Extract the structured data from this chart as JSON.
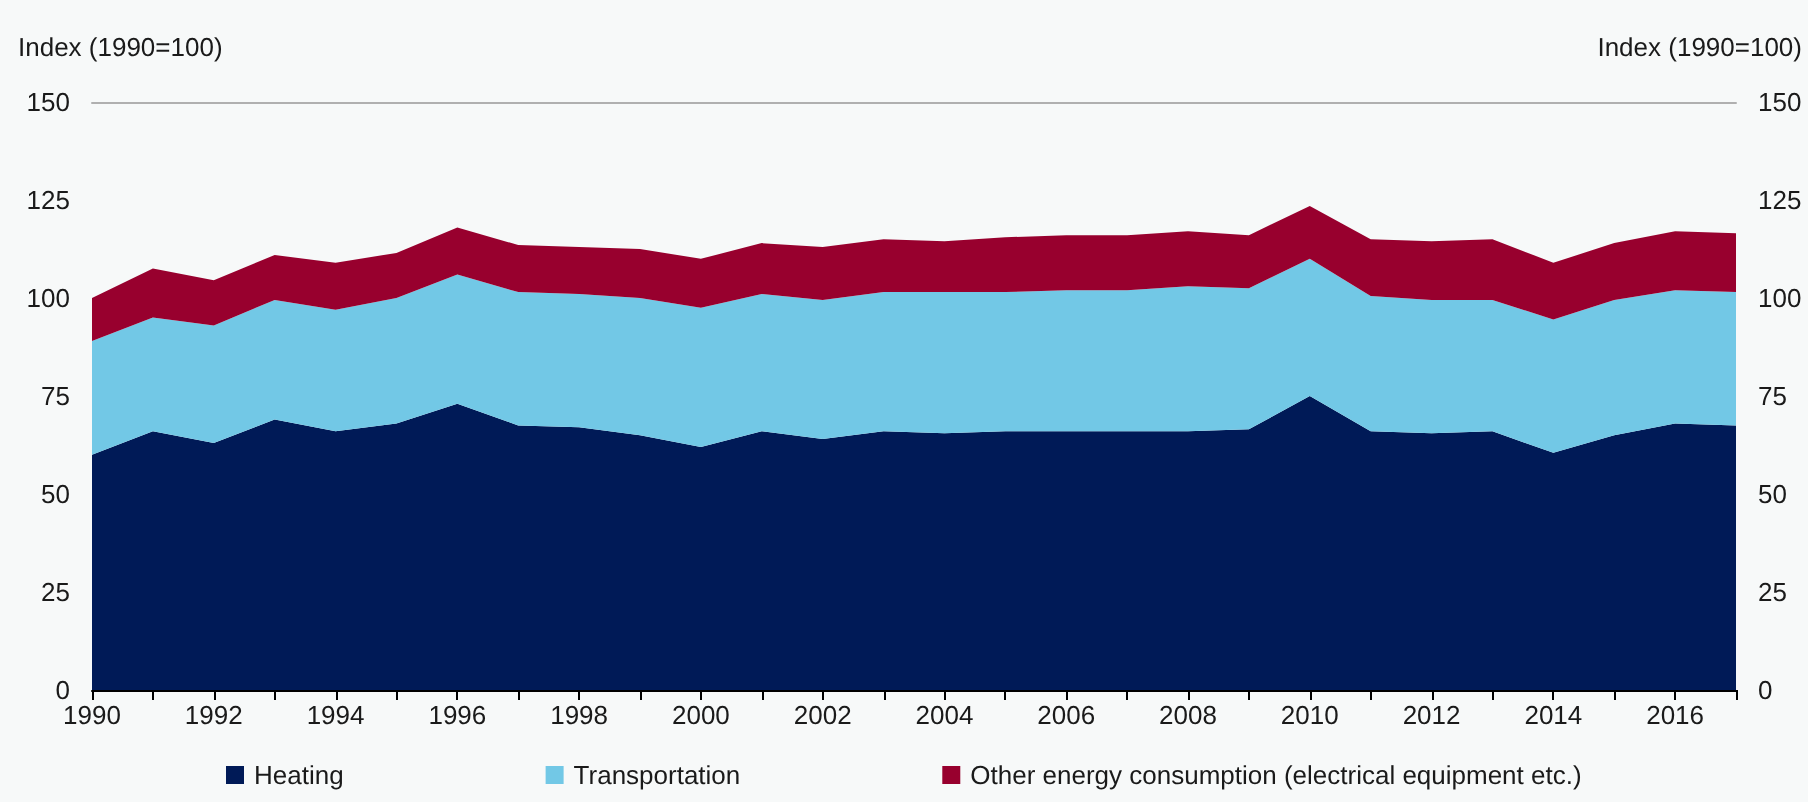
{
  "chart_data": {
    "type": "area",
    "stacked": true,
    "ylabel": "Index (1990=100)",
    "y2label": "Index (1990=100)",
    "x": [
      1990,
      1991,
      1992,
      1993,
      1994,
      1995,
      1996,
      1997,
      1998,
      1999,
      2000,
      2001,
      2002,
      2003,
      2004,
      2005,
      2006,
      2007,
      2008,
      2009,
      2010,
      2011,
      2012,
      2013,
      2014,
      2015,
      2016,
      2017
    ],
    "series": [
      {
        "name": "Heating",
        "color": "#001a57",
        "values": [
          60,
          66,
          63,
          69,
          66,
          68,
          73,
          67.5,
          67,
          65,
          62,
          66,
          64,
          66,
          65.5,
          66,
          66,
          66,
          66,
          66.5,
          75,
          66,
          65.5,
          66,
          60.5,
          65,
          68,
          67.5
        ]
      },
      {
        "name": "Transportation",
        "color": "#72c8e6",
        "values": [
          29,
          29,
          30,
          30.5,
          31,
          32,
          33,
          34,
          34,
          35,
          35.5,
          35,
          35.5,
          35.5,
          36,
          35.5,
          36,
          36,
          37,
          36,
          35,
          34.5,
          34,
          33.5,
          34,
          34.5,
          34,
          34
        ]
      },
      {
        "name": "Other energy consumption (electrical equipment etc.)",
        "color": "#98002e",
        "values": [
          11,
          12.5,
          11.5,
          11.5,
          12,
          11.5,
          12,
          12,
          12,
          12.5,
          12.5,
          13,
          13.5,
          13.5,
          13,
          14,
          14,
          14,
          14,
          13.5,
          13.5,
          14.5,
          15,
          15.5,
          14.5,
          14.5,
          15,
          15
        ]
      }
    ],
    "xlim": [
      1990,
      2017
    ],
    "xticks": [
      1990,
      {
        "value": 1991,
        "label": null
      },
      1992,
      {
        "value": 1993,
        "label": null
      },
      1994,
      {
        "value": 1995,
        "label": null
      },
      1996,
      {
        "value": 1997,
        "label": null
      },
      1998,
      {
        "value": 1999,
        "label": null
      },
      2000,
      {
        "value": 2001,
        "label": null
      },
      2002,
      {
        "value": 2003,
        "label": null
      },
      2004,
      {
        "value": 2005,
        "label": null
      },
      2006,
      {
        "value": 2007,
        "label": null
      },
      2008,
      {
        "value": 2009,
        "label": null
      },
      2010,
      {
        "value": 2011,
        "label": null
      },
      2012,
      {
        "value": 2013,
        "label": null
      },
      2014,
      {
        "value": 2015,
        "label": null
      },
      2016,
      {
        "value": 2017,
        "label": null
      }
    ],
    "ylim": [
      0,
      150
    ],
    "yticks": [
      0,
      25,
      50,
      75,
      100,
      125,
      150
    ],
    "y2lim": [
      0,
      150
    ],
    "y2ticks": [
      0,
      25,
      50,
      75,
      100,
      125,
      150
    ],
    "grid": false,
    "legend": "bottom"
  }
}
